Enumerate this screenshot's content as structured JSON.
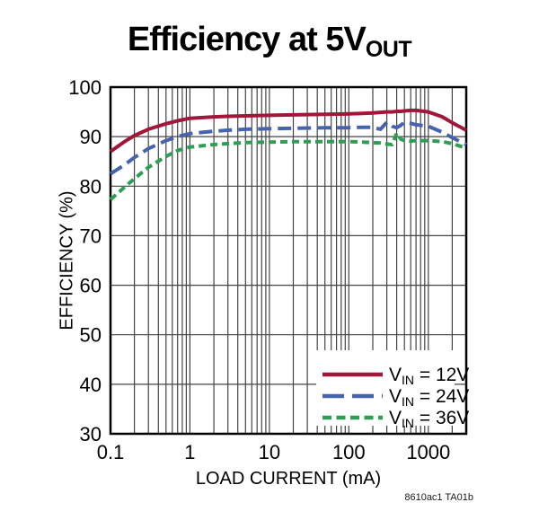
{
  "title": {
    "main": "Efficiency at 5V",
    "sub": "OUT"
  },
  "watermark": "8610ac1 TA01b",
  "colors": {
    "vin_12v": "#A1173A",
    "vin_24v": "#4664AE",
    "vin_36v": "#2F9E55",
    "grid": "#444444",
    "axis": "#000000",
    "text": "#000000",
    "legend_bg": "#ffffff"
  },
  "chart_data": {
    "type": "line",
    "title": "Efficiency at 5VOUT",
    "xlabel": "LOAD CURRENT (mA)",
    "ylabel": "EFFICIENCY (%)",
    "x_scale": "log",
    "xlim": [
      0.1,
      3000
    ],
    "ylim": [
      30,
      100
    ],
    "x_ticks": [
      0.1,
      1,
      10,
      100,
      1000
    ],
    "x_tick_labels": [
      "0.1",
      "1",
      "10",
      "100",
      "1000"
    ],
    "y_ticks": [
      30,
      40,
      50,
      60,
      70,
      80,
      90,
      100
    ],
    "y_tick_labels": [
      "30",
      "40",
      "50",
      "60",
      "70",
      "80",
      "90",
      "100"
    ],
    "grid": true,
    "legend_position": "lower right",
    "x": [
      0.1,
      0.15,
      0.2,
      0.3,
      0.5,
      0.7,
      1,
      2,
      3,
      5,
      10,
      20,
      50,
      100,
      150,
      200,
      250,
      300,
      350,
      400,
      450,
      500,
      600,
      700,
      1000,
      1500,
      2000,
      3000
    ],
    "series": [
      {
        "id": "vin-12v",
        "label_prefix": "V",
        "label_sub": "IN",
        "label_suffix": " = 12V",
        "label_text": "VIN = 12V",
        "color": "#A1173A",
        "style": "solid",
        "values": [
          87.0,
          89.0,
          90.2,
          91.5,
          92.6,
          93.2,
          93.7,
          94.0,
          94.1,
          94.2,
          94.3,
          94.4,
          94.5,
          94.6,
          94.7,
          94.8,
          94.9,
          95.0,
          95.0,
          95.1,
          95.1,
          95.2,
          95.3,
          95.3,
          95.0,
          94.0,
          92.8,
          91.3
        ]
      },
      {
        "id": "vin-24v",
        "label_prefix": "V",
        "label_sub": "IN",
        "label_suffix": " = 24V",
        "label_text": "VIN = 24V",
        "color": "#4664AE",
        "style": "dashed",
        "values": [
          82.5,
          84.3,
          85.8,
          87.6,
          89.2,
          90.0,
          90.6,
          91.1,
          91.3,
          91.5,
          91.6,
          91.7,
          91.8,
          91.8,
          91.9,
          91.9,
          91.5,
          92.9,
          92.1,
          91.8,
          92.3,
          92.9,
          92.7,
          92.4,
          92.1,
          90.9,
          89.8,
          88.4
        ]
      },
      {
        "id": "vin-36v",
        "label_prefix": "V",
        "label_sub": "IN",
        "label_suffix": " = 36V",
        "label_text": "VIN = 36V",
        "color": "#2F9E55",
        "style": "dotted-dash",
        "values": [
          77.3,
          79.8,
          81.5,
          83.8,
          86.0,
          87.2,
          87.9,
          88.4,
          88.6,
          88.8,
          88.9,
          89.0,
          89.0,
          89.0,
          88.9,
          88.8,
          88.7,
          88.5,
          88.4,
          90.7,
          89.5,
          89.2,
          89.1,
          89.2,
          89.2,
          89.0,
          88.6,
          87.7
        ]
      }
    ]
  }
}
